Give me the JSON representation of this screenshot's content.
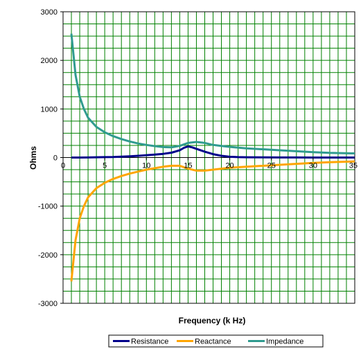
{
  "chart_data": {
    "type": "line",
    "title": "",
    "xlabel": "Frequency (k Hz)",
    "ylabel": "Ohms",
    "xlim": [
      0,
      35
    ],
    "ylim": [
      -3000,
      3000
    ],
    "x_ticks": [
      0,
      5,
      10,
      15,
      20,
      25,
      30,
      35
    ],
    "y_ticks": [
      -3000,
      -2000,
      -1000,
      0,
      1000,
      2000,
      3000
    ],
    "x_tick_labels": [
      "0",
      "5",
      "10",
      "15",
      "20",
      "25",
      "30",
      "35"
    ],
    "y_tick_labels": [
      "-3000",
      "-2000",
      "-1000",
      "0",
      "1000",
      "2000",
      "3000"
    ],
    "grid": {
      "vertical": true,
      "horizontal": true,
      "grid_color": "#008000"
    },
    "legend_position": "bottom",
    "series": [
      {
        "name": "Resistance",
        "color": "#00008b",
        "points": [
          [
            1,
            0
          ],
          [
            2,
            0
          ],
          [
            3,
            2
          ],
          [
            4,
            5
          ],
          [
            5,
            8
          ],
          [
            6,
            12
          ],
          [
            7,
            18
          ],
          [
            8,
            25
          ],
          [
            9,
            35
          ],
          [
            10,
            48
          ],
          [
            11,
            60
          ],
          [
            12,
            75
          ],
          [
            13,
            100
          ],
          [
            14,
            150
          ],
          [
            14.5,
            200
          ],
          [
            15,
            230
          ],
          [
            15.5,
            210
          ],
          [
            16,
            180
          ],
          [
            17,
            120
          ],
          [
            18,
            70
          ],
          [
            19,
            35
          ],
          [
            20,
            15
          ],
          [
            21,
            8
          ],
          [
            22,
            5
          ],
          [
            24,
            3
          ],
          [
            26,
            2
          ],
          [
            28,
            1
          ],
          [
            30,
            0
          ],
          [
            32,
            0
          ],
          [
            35,
            0
          ]
        ]
      },
      {
        "name": "Reactance",
        "color": "#ffa500",
        "points": [
          [
            1,
            -2550
          ],
          [
            1.5,
            -1700
          ],
          [
            2,
            -1250
          ],
          [
            2.5,
            -1000
          ],
          [
            3,
            -820
          ],
          [
            4,
            -630
          ],
          [
            5,
            -520
          ],
          [
            6,
            -440
          ],
          [
            7,
            -380
          ],
          [
            8,
            -330
          ],
          [
            9,
            -290
          ],
          [
            10,
            -250
          ],
          [
            11,
            -220
          ],
          [
            12,
            -190
          ],
          [
            13,
            -170
          ],
          [
            14,
            -170
          ],
          [
            15,
            -230
          ],
          [
            16,
            -270
          ],
          [
            17,
            -270
          ],
          [
            18,
            -250
          ],
          [
            19,
            -230
          ],
          [
            20,
            -210
          ],
          [
            22,
            -190
          ],
          [
            24,
            -170
          ],
          [
            26,
            -150
          ],
          [
            28,
            -130
          ],
          [
            30,
            -110
          ],
          [
            32,
            -95
          ],
          [
            35,
            -80
          ]
        ]
      },
      {
        "name": "Impedance",
        "color": "#2f9b8f",
        "points": [
          [
            1,
            2550
          ],
          [
            1.5,
            1700
          ],
          [
            2,
            1250
          ],
          [
            2.5,
            1000
          ],
          [
            3,
            820
          ],
          [
            4,
            630
          ],
          [
            5,
            520
          ],
          [
            6,
            440
          ],
          [
            7,
            380
          ],
          [
            8,
            330
          ],
          [
            9,
            290
          ],
          [
            10,
            260
          ],
          [
            11,
            235
          ],
          [
            12,
            215
          ],
          [
            13,
            210
          ],
          [
            14,
            240
          ],
          [
            15,
            300
          ],
          [
            16,
            320
          ],
          [
            17,
            300
          ],
          [
            18,
            260
          ],
          [
            19,
            240
          ],
          [
            20,
            220
          ],
          [
            22,
            190
          ],
          [
            24,
            170
          ],
          [
            26,
            150
          ],
          [
            28,
            130
          ],
          [
            30,
            110
          ],
          [
            32,
            95
          ],
          [
            35,
            85
          ]
        ]
      }
    ]
  }
}
